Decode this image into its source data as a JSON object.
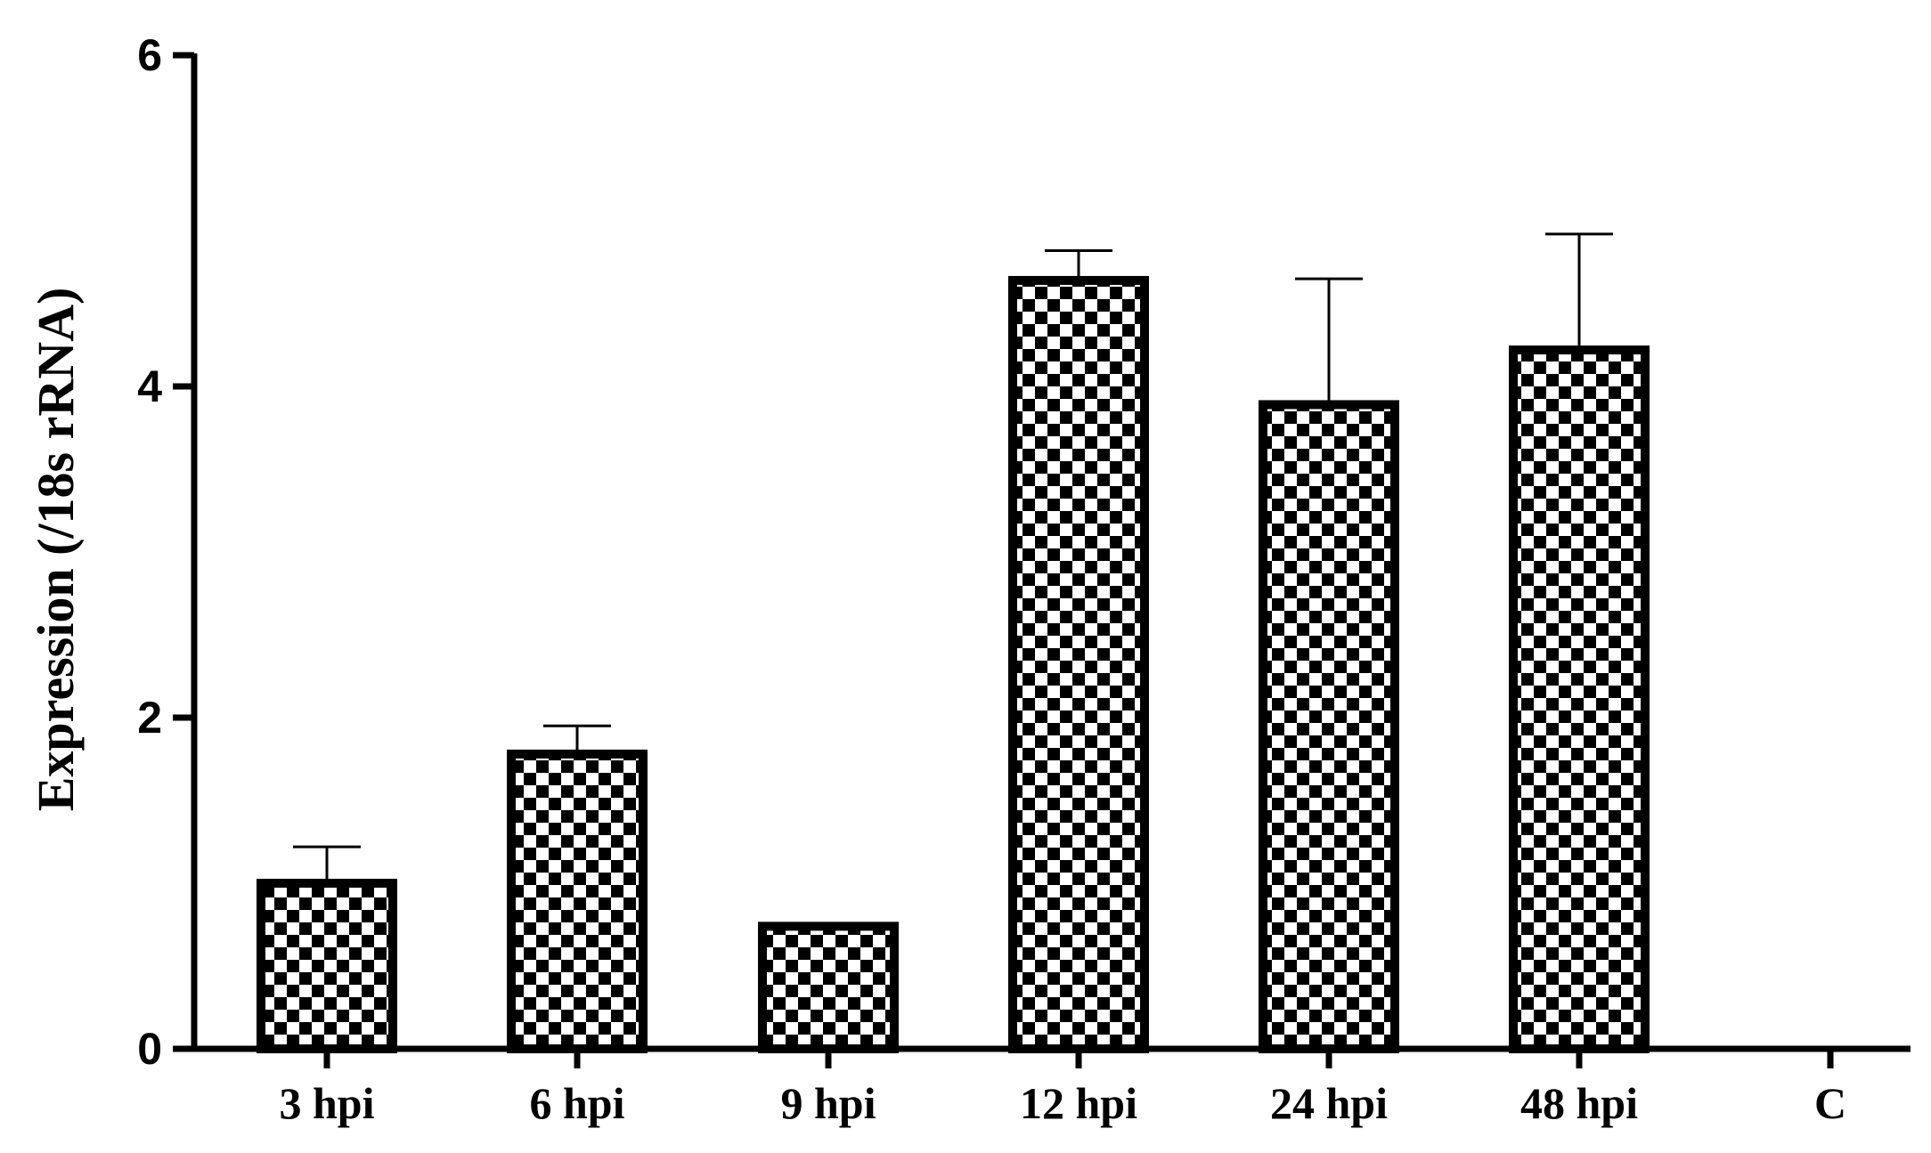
{
  "chart_data": {
    "type": "bar",
    "title": "",
    "xlabel": "",
    "ylabel": "Expression (/18s rRNA)",
    "ylim": [
      0,
      6
    ],
    "yticks": [
      0,
      2,
      4,
      6
    ],
    "yticks_text": [
      "0",
      "2",
      "4",
      "6"
    ],
    "grid": false,
    "legend": "none",
    "bar_pattern": "checkerboard",
    "colors": {
      "bar_outline": "#000000",
      "checker_dark": "#000000",
      "checker_light": "#ffffff",
      "axis": "#000000"
    },
    "categories": [
      "3 hpi",
      "6 hpi",
      "9 hpi",
      "12 hpi",
      "24 hpi",
      "48 hpi",
      "C"
    ],
    "values": [
      1.0,
      1.78,
      0.74,
      4.64,
      3.89,
      4.22,
      0
    ],
    "error_upper": [
      1.22,
      1.95,
      0.75,
      4.82,
      4.65,
      4.92,
      null
    ]
  }
}
